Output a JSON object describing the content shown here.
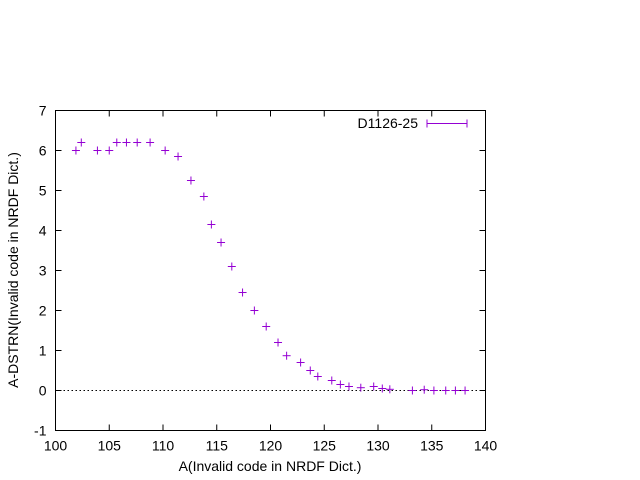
{
  "chart_data": {
    "type": "scatter",
    "title": "",
    "xlabel": "A(Invalid code in NRDF Dict.)",
    "ylabel": "A-DSTRN(Invalid code in NRDF Dict.)",
    "xlim": [
      100,
      140
    ],
    "ylim": [
      -1,
      7
    ],
    "xticks": [
      100,
      105,
      110,
      115,
      120,
      125,
      130,
      135,
      140
    ],
    "yticks": [
      -1,
      0,
      1,
      2,
      3,
      4,
      5,
      6,
      7
    ],
    "grid": false,
    "legend_position": "top-right",
    "zero_line": true,
    "series": [
      {
        "name": "D1126-25",
        "color": "#9400d3",
        "marker": "plus",
        "error_bars": "x",
        "x": [
          101.9,
          102.4,
          103.9,
          105.0,
          105.7,
          106.6,
          107.6,
          108.8,
          110.2,
          111.4,
          112.6,
          113.8,
          114.5,
          115.4,
          116.4,
          117.4,
          118.5,
          119.6,
          120.7,
          121.5,
          122.8,
          123.7,
          124.4,
          125.7,
          126.5,
          127.3,
          128.4,
          129.6,
          130.4,
          131.1,
          133.2,
          134.3,
          135.2,
          136.3,
          137.2,
          138.1
        ],
        "y": [
          6.0,
          6.2,
          6.0,
          6.0,
          6.2,
          6.2,
          6.2,
          6.2,
          6.0,
          5.85,
          5.25,
          4.85,
          4.15,
          3.7,
          3.1,
          2.45,
          2.0,
          1.6,
          1.2,
          0.87,
          0.7,
          0.5,
          0.35,
          0.25,
          0.15,
          0.1,
          0.07,
          0.1,
          0.05,
          0.03,
          0.0,
          0.02,
          0.0,
          0.0,
          0.0,
          0.0
        ]
      }
    ]
  }
}
